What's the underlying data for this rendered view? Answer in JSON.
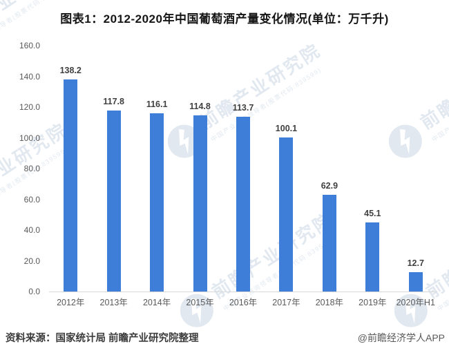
{
  "title": "图表1：2012-2020年中国葡萄酒产量变化情况(单位：万千升)",
  "chart_data": {
    "type": "bar",
    "title": "图表1：2012-2020年中国葡萄酒产量变化情况(单位：万千升)",
    "unit": "万千升",
    "categories": [
      "2012年",
      "2013年",
      "2014年",
      "2015年",
      "2016年",
      "2017年",
      "2018年",
      "2019年",
      "2020年H1"
    ],
    "values": [
      138.2,
      117.8,
      116.1,
      114.8,
      113.7,
      100.1,
      62.9,
      45.1,
      12.7
    ],
    "xlabel": "",
    "ylabel": "",
    "ylim": [
      0,
      160
    ],
    "ytick_step": 20,
    "yticks": [
      "160.0",
      "140.0",
      "120.0",
      "100.0",
      "80.0",
      "60.0",
      "40.0",
      "20.0",
      "0.0"
    ],
    "grid": false,
    "legend": null,
    "bar_color": "#3e7ed9",
    "value_labels_shown": true
  },
  "footer": {
    "source": "资料来源：国家统计局 前瞻产业研究院整理",
    "credit": "@前瞻经济学人APP"
  },
  "watermark": {
    "brand": "前瞻产业研究院",
    "tagline": "中国产业咨询领导者(股票代码:839599)",
    "color": "#9db4cf"
  },
  "colors": {
    "bar": "#3e7ed9",
    "axis_line": "#d8d8d8",
    "tick_text": "#595959",
    "value_text": "#3f3f3f",
    "title_text": "#151515",
    "watermark": "#9db4cf",
    "background": "#ffffff"
  }
}
